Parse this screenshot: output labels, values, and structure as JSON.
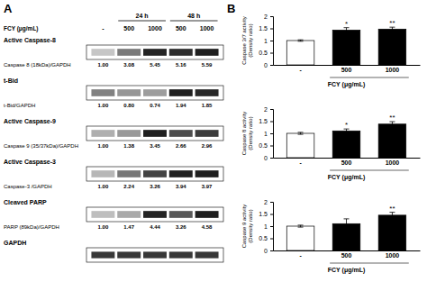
{
  "chart_data": [
    {
      "type": "heatmap",
      "title": "A",
      "xlabel": "FCY (μg/mL)",
      "categories": [
        "-",
        "500",
        "1000",
        "500",
        "1000"
      ],
      "column_group": [
        null,
        "24 h",
        "24 h",
        "48 h",
        "48 h"
      ],
      "data_labels": true,
      "rows": [
        {
          "name": "Active Caspase-8",
          "ratio_label": "Caspase 8 (18kDa)/GAPDH",
          "values": [
            1.0,
            3.08,
            5.45,
            5.16,
            5.59
          ],
          "value_labels": [
            "1.00",
            "3.08",
            "5.45",
            "5.16",
            "5.59"
          ]
        },
        {
          "name": "t-Bid",
          "ratio_label": "t-Bid/GAPDH",
          "values": [
            1.0,
            0.8,
            0.74,
            1.94,
            1.85
          ],
          "value_labels": [
            "1.00",
            "0.80",
            "0.74",
            "1.94",
            "1.85"
          ]
        },
        {
          "name": "Active Caspase-9",
          "ratio_label": "Caspase 9 (35/37kDa)/GAPDH",
          "values": [
            1.0,
            1.38,
            3.45,
            2.66,
            2.96
          ],
          "value_labels": [
            "1.00",
            "1.38",
            "3.45",
            "2.66",
            "2.96"
          ]
        },
        {
          "name": "Active Caspase-3",
          "ratio_label": "Caspase-3 /GAPDH",
          "values": [
            1.0,
            2.24,
            3.26,
            3.94,
            3.97
          ],
          "value_labels": [
            "1.00",
            "2.24",
            "3.26",
            "3.94",
            "3.97"
          ]
        },
        {
          "name": "Cleaved PARP",
          "ratio_label": "PARP (89kDa)/GAPDH",
          "values": [
            1.0,
            1.47,
            4.44,
            3.26,
            4.58
          ],
          "value_labels": [
            "1.00",
            "1.47",
            "4.44",
            "3.26",
            "4.58"
          ]
        },
        {
          "name": "GAPDH"
        }
      ]
    },
    {
      "type": "bar",
      "title": "B",
      "ylabel": "Caspase 3/7 activity\n(Density ratio)",
      "xlabel": "FCY (μg/mL)",
      "categories": [
        "-",
        "500",
        "1000"
      ],
      "values": [
        1.0,
        1.43,
        1.47
      ],
      "errors": [
        0.03,
        0.1,
        0.08
      ],
      "annotations": [
        null,
        "*",
        "**"
      ],
      "colors": [
        "white",
        "black",
        "black"
      ],
      "ylim": [
        0,
        2
      ],
      "yticks": [
        0,
        0.5,
        1,
        1.5,
        2
      ],
      "grid": false
    },
    {
      "type": "bar",
      "ylabel": "Caspase 8 activity\n(Density ratio)",
      "xlabel": "FCY (μg/mL)",
      "categories": [
        "-",
        "500",
        "1000"
      ],
      "values": [
        1.0,
        1.1,
        1.38
      ],
      "errors": [
        0.04,
        0.08,
        0.1
      ],
      "annotations": [
        null,
        "*",
        "**"
      ],
      "colors": [
        "white",
        "black",
        "black"
      ],
      "ylim": [
        0,
        2
      ],
      "yticks": [
        0,
        0.5,
        1,
        1.5,
        2
      ],
      "grid": false
    },
    {
      "type": "bar",
      "ylabel": "Caspase 9 activity\n(Density ratio)",
      "xlabel": "FCY (μg/mL)",
      "categories": [
        "-",
        "500",
        "1000"
      ],
      "values": [
        1.0,
        1.1,
        1.45
      ],
      "errors": [
        0.04,
        0.2,
        0.12
      ],
      "annotations": [
        null,
        null,
        "**"
      ],
      "colors": [
        "white",
        "black",
        "black"
      ],
      "ylim": [
        0,
        2
      ],
      "yticks": [
        0,
        0.5,
        1,
        1.5,
        2
      ],
      "grid": false
    }
  ]
}
